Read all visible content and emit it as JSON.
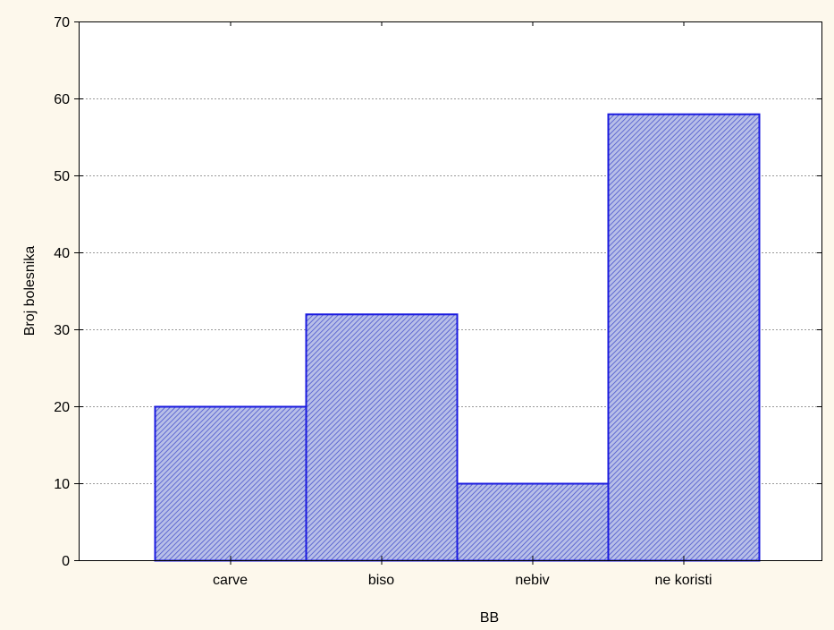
{
  "chart_data": {
    "type": "bar",
    "title": "",
    "xlabel": "BB",
    "ylabel": "Broj bolesnika",
    "categories": [
      "carve",
      "biso",
      "nebiv",
      "ne koristi"
    ],
    "values": [
      20,
      32,
      10,
      58
    ],
    "ylim": [
      0,
      70
    ],
    "yticks": [
      0,
      10,
      20,
      30,
      40,
      50,
      60,
      70
    ],
    "grid": true,
    "bar_style": "diagonal hatch",
    "colors": {
      "page_background": "#fdf8ec",
      "plot_background": "#ffffff",
      "bar_fill": "#b8bfe8",
      "bar_hatch": "#4a55cc",
      "bar_stroke": "#1a1adf",
      "grid": "#9a9a9a",
      "axis": "#000000"
    }
  }
}
